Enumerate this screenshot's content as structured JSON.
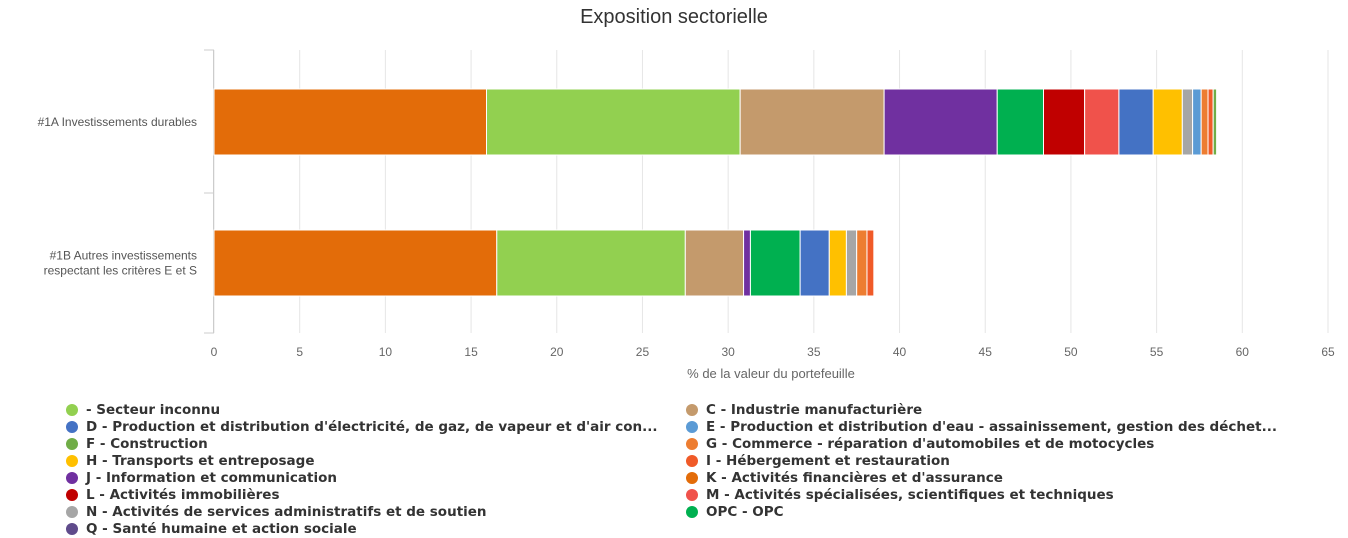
{
  "chart_data": {
    "type": "bar",
    "orientation": "horizontal",
    "stacked": true,
    "title": "Exposition sectorielle",
    "xlabel": "% de la valeur du portefeuille",
    "ylabel": "",
    "xlim": [
      0,
      65
    ],
    "xticks": [
      0,
      5,
      10,
      15,
      20,
      25,
      30,
      35,
      40,
      45,
      50,
      55,
      60,
      65
    ],
    "grid": true,
    "legend_position": "bottom",
    "categories": [
      "#1A Investissements durables",
      "#1B Autres investissements respectant les critères E et S"
    ],
    "category_lines": [
      [
        "#1A Investissements durables"
      ],
      [
        "#1B Autres investissements",
        "respectant les critères E et S"
      ]
    ],
    "series": [
      {
        "name": "K - Activités financières et d'assurance",
        "color": "#E36C09",
        "values": [
          15.9,
          16.5
        ]
      },
      {
        "name": "- Secteur inconnu",
        "color": "#92D050",
        "values": [
          14.8,
          11.0
        ]
      },
      {
        "name": "C - Industrie manufacturière",
        "color": "#C49A6C",
        "values": [
          8.4,
          3.4
        ]
      },
      {
        "name": "J - Information et communication",
        "color": "#7030A0",
        "values": [
          6.6,
          0.4
        ]
      },
      {
        "name": "OPC - OPC",
        "color": "#00B050",
        "values": [
          2.7,
          2.9
        ]
      },
      {
        "name": "L - Activités immobilières",
        "color": "#C00000",
        "values": [
          2.4,
          0.0
        ]
      },
      {
        "name": "M - Activités spécialisées, scientifiques et techniques",
        "color": "#F0524B",
        "values": [
          2.0,
          0.0
        ]
      },
      {
        "name": "D - Production et distribution d'électricité, de gaz, de vapeur et d'air con...",
        "color": "#4472C4",
        "values": [
          2.0,
          1.7
        ]
      },
      {
        "name": "H - Transports et entreposage",
        "color": "#FFC000",
        "values": [
          1.7,
          1.0
        ]
      },
      {
        "name": "N - Activités de services administratifs et de soutien",
        "color": "#A6A6A6",
        "values": [
          0.6,
          0.6
        ]
      },
      {
        "name": "E - Production et distribution d'eau - assainissement, gestion des déchet...",
        "color": "#5B9BD5",
        "values": [
          0.5,
          0.0
        ]
      },
      {
        "name": "G - Commerce - réparation d'automobiles et de motocycles",
        "color": "#ED7D31",
        "values": [
          0.4,
          0.6
        ]
      },
      {
        "name": "I - Hébergement et restauration",
        "color": "#F05A28",
        "values": [
          0.3,
          0.4
        ]
      },
      {
        "name": "F - Construction",
        "color": "#70AD47",
        "values": [
          0.2,
          0.0
        ]
      },
      {
        "name": "Q - Santé humaine et action sociale",
        "color": "#5F4B8B",
        "values": [
          0.0,
          0.0
        ]
      }
    ],
    "legend_order": [
      "- Secteur inconnu",
      "C - Industrie manufacturière",
      "D - Production et distribution d'électricité, de gaz, de vapeur et d'air con...",
      "E - Production et distribution d'eau - assainissement, gestion des déchet...",
      "F - Construction",
      "G - Commerce - réparation d'automobiles et de motocycles",
      "H - Transports et entreposage",
      "I - Hébergement et restauration",
      "J - Information et communication",
      "K - Activités financières et d'assurance",
      "L - Activités immobilières",
      "M - Activités spécialisées, scientifiques et techniques",
      "N - Activités de services administratifs et de soutien",
      "OPC - OPC",
      "Q - Santé humaine et action sociale"
    ]
  }
}
